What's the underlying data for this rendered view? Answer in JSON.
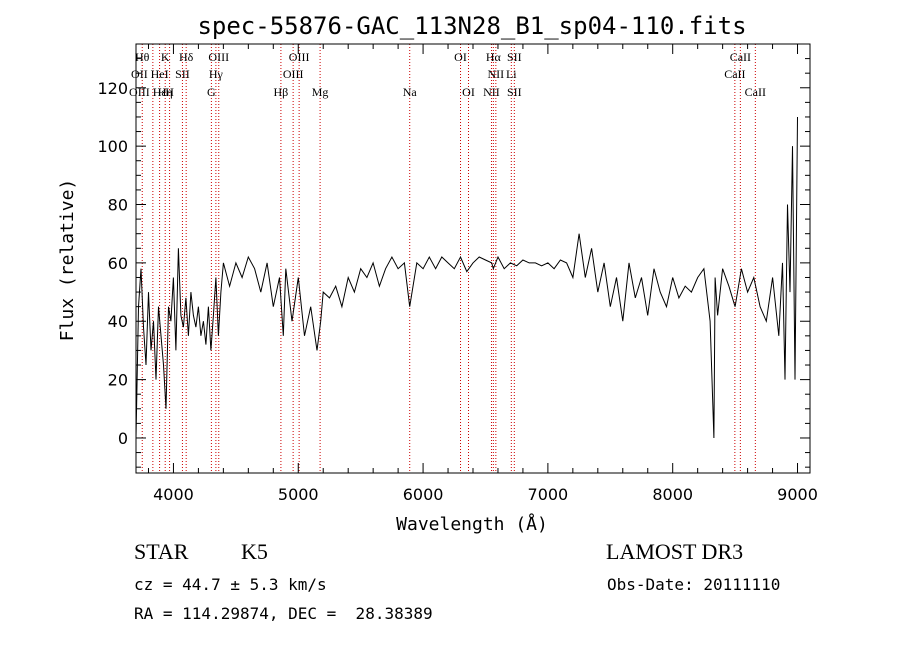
{
  "chart_data": {
    "type": "line",
    "title": "spec-55876-GAC_113N28_B1_sp04-110.fits",
    "xlabel": "Wavelength (Å)",
    "ylabel": "Flux (relative)",
    "xlim": [
      3700,
      9100
    ],
    "ylim": [
      -12,
      135
    ],
    "x_ticks": [
      4000,
      5000,
      6000,
      7000,
      8000,
      9000
    ],
    "y_ticks": [
      0,
      20,
      40,
      60,
      80,
      100,
      120
    ],
    "grid": false,
    "series": [
      {
        "color": "#000000",
        "x": [
          3700,
          3720,
          3740,
          3760,
          3780,
          3800,
          3820,
          3840,
          3860,
          3880,
          3900,
          3920,
          3940,
          3960,
          3980,
          4000,
          4020,
          4040,
          4060,
          4080,
          4100,
          4120,
          4140,
          4160,
          4180,
          4200,
          4220,
          4240,
          4260,
          4280,
          4300,
          4320,
          4340,
          4360,
          4380,
          4400,
          4450,
          4500,
          4550,
          4600,
          4650,
          4700,
          4750,
          4800,
          4850,
          4880,
          4900,
          4950,
          5000,
          5050,
          5100,
          5150,
          5180,
          5200,
          5250,
          5300,
          5350,
          5400,
          5450,
          5500,
          5550,
          5600,
          5650,
          5700,
          5750,
          5800,
          5850,
          5893,
          5950,
          6000,
          6050,
          6100,
          6150,
          6200,
          6250,
          6300,
          6350,
          6400,
          6450,
          6500,
          6550,
          6563,
          6600,
          6650,
          6700,
          6750,
          6800,
          6850,
          6900,
          6950,
          7000,
          7050,
          7100,
          7150,
          7200,
          7250,
          7300,
          7350,
          7400,
          7450,
          7500,
          7550,
          7600,
          7650,
          7700,
          7750,
          7800,
          7850,
          7900,
          7950,
          8000,
          8050,
          8100,
          8150,
          8200,
          8250,
          8300,
          8330,
          8340,
          8360,
          8400,
          8450,
          8500,
          8550,
          8600,
          8650,
          8700,
          8750,
          8800,
          8850,
          8880,
          8900,
          8920,
          8940,
          8960,
          8980,
          9000
        ],
        "y": [
          0,
          45,
          58,
          38,
          25,
          50,
          30,
          40,
          20,
          45,
          35,
          25,
          10,
          45,
          40,
          55,
          30,
          65,
          42,
          38,
          48,
          35,
          50,
          42,
          38,
          45,
          35,
          40,
          32,
          45,
          30,
          42,
          55,
          35,
          50,
          60,
          52,
          60,
          55,
          62,
          58,
          50,
          60,
          45,
          55,
          35,
          58,
          40,
          55,
          35,
          45,
          30,
          40,
          50,
          48,
          52,
          45,
          55,
          50,
          58,
          55,
          60,
          52,
          58,
          62,
          58,
          60,
          45,
          60,
          58,
          62,
          58,
          62,
          60,
          58,
          62,
          57,
          60,
          62,
          61,
          60,
          58,
          62,
          58,
          60,
          59,
          61,
          60,
          60,
          59,
          60,
          58,
          61,
          60,
          55,
          70,
          55,
          65,
          50,
          60,
          45,
          55,
          40,
          60,
          48,
          55,
          42,
          58,
          50,
          45,
          55,
          48,
          52,
          50,
          55,
          58,
          40,
          0,
          55,
          42,
          58,
          52,
          45,
          58,
          50,
          55,
          45,
          40,
          55,
          35,
          60,
          20,
          80,
          50,
          100,
          20,
          110
        ]
      }
    ],
    "line_marks": [
      {
        "x": 3750,
        "labels": [
          "Hθ",
          "OII",
          "OIII"
        ]
      },
      {
        "x": 3835,
        "labels": []
      },
      {
        "x": 3889,
        "labels": [
          "Hε"
        ]
      },
      {
        "x": 3934,
        "labels": [
          "K",
          "HeI",
          "Hη"
        ]
      },
      {
        "x": 3969,
        "labels": [
          "H"
        ]
      },
      {
        "x": 4072,
        "labels": [
          "SII"
        ]
      },
      {
        "x": 4102,
        "labels": [
          "Hδ"
        ]
      },
      {
        "x": 4304,
        "labels": [
          "G"
        ]
      },
      {
        "x": 4340,
        "labels": [
          "Hγ"
        ]
      },
      {
        "x": 4363,
        "labels": [
          "OIII"
        ]
      },
      {
        "x": 4861,
        "labels": [
          "Hβ"
        ]
      },
      {
        "x": 4959,
        "labels": [
          "OIII"
        ]
      },
      {
        "x": 5007,
        "labels": [
          "OIII"
        ]
      },
      {
        "x": 5175,
        "labels": [
          "Mg"
        ]
      },
      {
        "x": 5893,
        "labels": [
          "Na"
        ]
      },
      {
        "x": 6300,
        "labels": [
          "OI"
        ]
      },
      {
        "x": 6364,
        "labels": [
          "OI"
        ]
      },
      {
        "x": 6548,
        "labels": [
          "NII"
        ]
      },
      {
        "x": 6563,
        "labels": [
          "Hα"
        ]
      },
      {
        "x": 6583,
        "labels": [
          "NII"
        ]
      },
      {
        "x": 6707,
        "labels": [
          "Li",
          "SII"
        ]
      },
      {
        "x": 6731,
        "labels": [
          "SII"
        ]
      },
      {
        "x": 8498,
        "labels": [
          "CaII"
        ]
      },
      {
        "x": 8542,
        "labels": [
          "CaII"
        ]
      },
      {
        "x": 8662,
        "labels": [
          "CaII"
        ]
      }
    ],
    "line_label_rows": [
      [
        {
          "x": 3750,
          "text": "Hθ"
        },
        {
          "x": 3934,
          "text": "K"
        },
        {
          "x": 4102,
          "text": "Hδ"
        },
        {
          "x": 4363,
          "text": "OIII"
        },
        {
          "x": 5007,
          "text": "OIII"
        },
        {
          "x": 6300,
          "text": "OI"
        },
        {
          "x": 6563,
          "text": "Hα"
        },
        {
          "x": 6731,
          "text": "SII"
        },
        {
          "x": 8542,
          "text": "CaII"
        }
      ],
      [
        {
          "x": 3727,
          "text": "OII"
        },
        {
          "x": 3889,
          "text": "HeI"
        },
        {
          "x": 4072,
          "text": "SII"
        },
        {
          "x": 4340,
          "text": "Hγ"
        },
        {
          "x": 4959,
          "text": "OIII"
        },
        {
          "x": 6583,
          "text": "NII"
        },
        {
          "x": 6707,
          "text": "Li"
        },
        {
          "x": 8498,
          "text": "CaII"
        }
      ],
      [
        {
          "x": 3727,
          "text": "OIII"
        },
        {
          "x": 3889,
          "text": "Hε"
        },
        {
          "x": 3934,
          "text": "Hη"
        },
        {
          "x": 3969,
          "text": "H"
        },
        {
          "x": 4304,
          "text": "G"
        },
        {
          "x": 4861,
          "text": "Hβ"
        },
        {
          "x": 5175,
          "text": "Mg"
        },
        {
          "x": 5893,
          "text": "Na"
        },
        {
          "x": 6364,
          "text": "OI"
        },
        {
          "x": 6548,
          "text": "NII"
        },
        {
          "x": 6731,
          "text": "SII"
        },
        {
          "x": 8662,
          "text": "CaII"
        }
      ]
    ],
    "line_mark_color": "#cc0000"
  },
  "info": {
    "object_class": "STAR",
    "subclass": "K5",
    "survey": "LAMOST DR3",
    "cz": "cz = 44.7 ± 5.3 km/s",
    "obs_date": "Obs-Date: 20111110",
    "coords": "RA = 114.29874, DEC =  28.38389"
  }
}
